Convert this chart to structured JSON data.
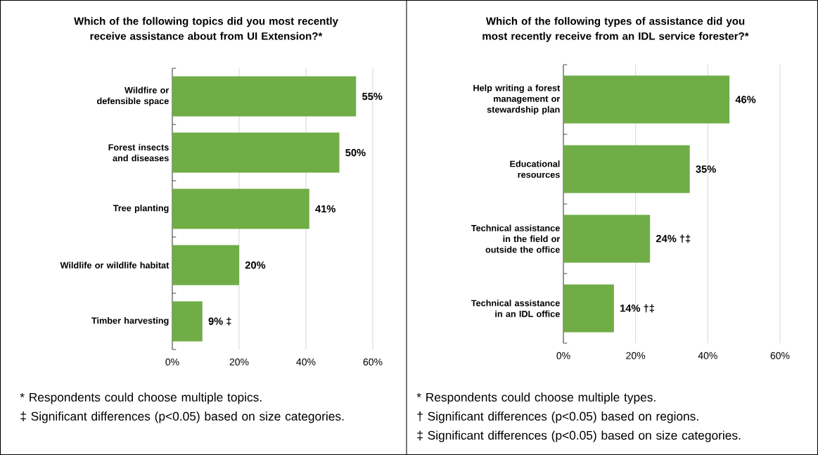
{
  "chart_data": [
    {
      "type": "bar",
      "orientation": "horizontal",
      "title": "Which of the following topics did you most recently receive assistance about from UI Extension?*",
      "categories": [
        "Wildfire or defensible space",
        "Forest insects and diseases",
        "Tree planting",
        "Wildlife or wildlife habitat",
        "Timber harvesting"
      ],
      "values": [
        55,
        50,
        41,
        20,
        9
      ],
      "color": "#70ad47",
      "value_labels": [
        "55%",
        "50%",
        "41%",
        "20%",
        "9% ‡"
      ],
      "xlim": [
        0,
        60
      ],
      "xticks": [
        {
          "value": 0,
          "label": "0%"
        },
        {
          "value": 20,
          "label": "20%"
        },
        {
          "value": 40,
          "label": "40%"
        },
        {
          "value": 60,
          "label": "60%"
        }
      ],
      "grid": "x",
      "annotations": [
        "* Respondents could choose multiple topics.",
        "‡ Significant differences (p<0.05) based on size categories."
      ]
    },
    {
      "type": "bar",
      "orientation": "horizontal",
      "title": "Which of the following types of assistance did you most recently receive from an IDL service forester?*",
      "categories": [
        "Help writing a forest management or stewardship plan",
        "Educational resources",
        "Technical assistance in the field or outside the office",
        "Technical assistance in an IDL office"
      ],
      "values": [
        46,
        35,
        24,
        14
      ],
      "color": "#70ad47",
      "value_labels": [
        "46%",
        "35%",
        "24% †‡",
        "14% †‡"
      ],
      "xlim": [
        0,
        60
      ],
      "xticks": [
        {
          "value": 0,
          "label": "0%"
        },
        {
          "value": 20,
          "label": "20%"
        },
        {
          "value": 40,
          "label": "40%"
        },
        {
          "value": 60,
          "label": "60%"
        }
      ],
      "grid": "x",
      "annotations": [
        "* Respondents could choose multiple types.",
        "† Significant differences (p<0.05) based on regions.",
        "‡ Significant differences (p<0.05) based on size categories."
      ]
    }
  ]
}
